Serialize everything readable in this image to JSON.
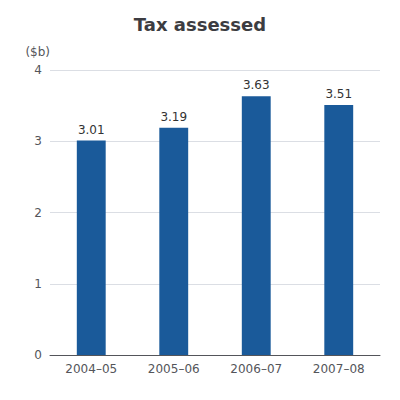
{
  "chart_data": {
    "type": "bar",
    "title": "Tax assessed",
    "ylabel": "($b)",
    "categories": [
      "2004–05",
      "2005–06",
      "2006–07",
      "2007–08"
    ],
    "values": [
      3.01,
      3.19,
      3.63,
      3.51
    ],
    "color": "#1a5a9a",
    "ylim": [
      0,
      4
    ],
    "yticks": [
      0,
      1,
      2,
      3,
      4
    ],
    "grid": true,
    "data_labels": true
  }
}
